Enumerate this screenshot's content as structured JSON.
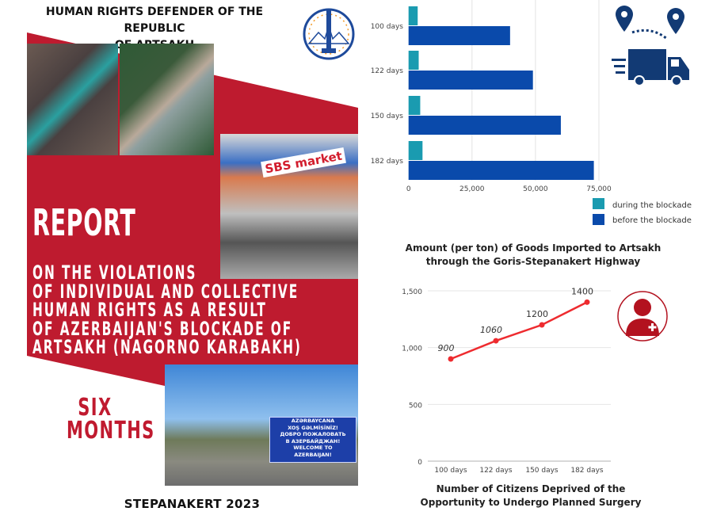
{
  "header": {
    "title_line1": "HUMAN RIGHTS DEFENDER OF THE REPUBLIC",
    "title_line2": "OF ARTSAKH"
  },
  "cover": {
    "report": "REPORT",
    "subtitle_lines": [
      "ON THE VIOLATIONS",
      "OF INDIVIDUAL AND COLLECTIVE",
      "HUMAN RIGHTS AS A RESULT",
      "OF AZERBAIJAN'S BLOCKADE OF",
      "ARTSAKH (NAGORNO KARABAKH)"
    ],
    "period_line1": "SIX",
    "period_line2": "MONTHS",
    "place_year": "STEPANAKERT  2023",
    "brand_color": "#be1b2f",
    "photos": {
      "market_sign": "SBS market",
      "border_sign_lines": [
        "AZƏRBAYCANA",
        "XOŞ GƏLMİSİNİZ!",
        "ДОБРО ПОЖАЛОВАТЬ",
        "В АЗЕРБАЙДЖАН!",
        "WELCOME TO",
        "AZERBAIJAN!"
      ]
    }
  },
  "icons": {
    "logo": "ombudsman-emblem",
    "route": "map-pin-route-icon",
    "truck": "delivery-truck-icon",
    "doctor": "medic-person-icon"
  },
  "chart_data": [
    {
      "type": "bar",
      "orientation": "horizontal",
      "title": "Amount (per ton) of Goods Imported to Artsakh through the Goris-Stepanakert Highway",
      "categories": [
        "100 days",
        "122 days",
        "150 days",
        "182 days"
      ],
      "series": [
        {
          "name": "during the blockade",
          "color": "#1a9bb0",
          "values": [
            3600,
            4000,
            4600,
            5500
          ]
        },
        {
          "name": "before the blockade",
          "color": "#0a4aab",
          "values": [
            40000,
            49000,
            60000,
            73000
          ]
        }
      ],
      "xlim": [
        0,
        75000
      ],
      "xticks": [
        "0",
        "25,000",
        "50,000",
        "75,000"
      ],
      "grid": true,
      "legend": "bottom-right"
    },
    {
      "type": "line",
      "title": "Number of Citizens Deprived of the Opportunity to Undergo Planned Surgery",
      "categories": [
        "100 days",
        "122 days",
        "150 days",
        "182 days"
      ],
      "values": [
        900,
        1060,
        1200,
        1400
      ],
      "data_labels": [
        "900",
        "1060",
        "1200",
        "1400"
      ],
      "color": "#ee2b2f",
      "ylim": [
        0,
        1500
      ],
      "yticks": [
        "0",
        "500",
        "1,000",
        "1,500"
      ],
      "grid": true
    }
  ]
}
